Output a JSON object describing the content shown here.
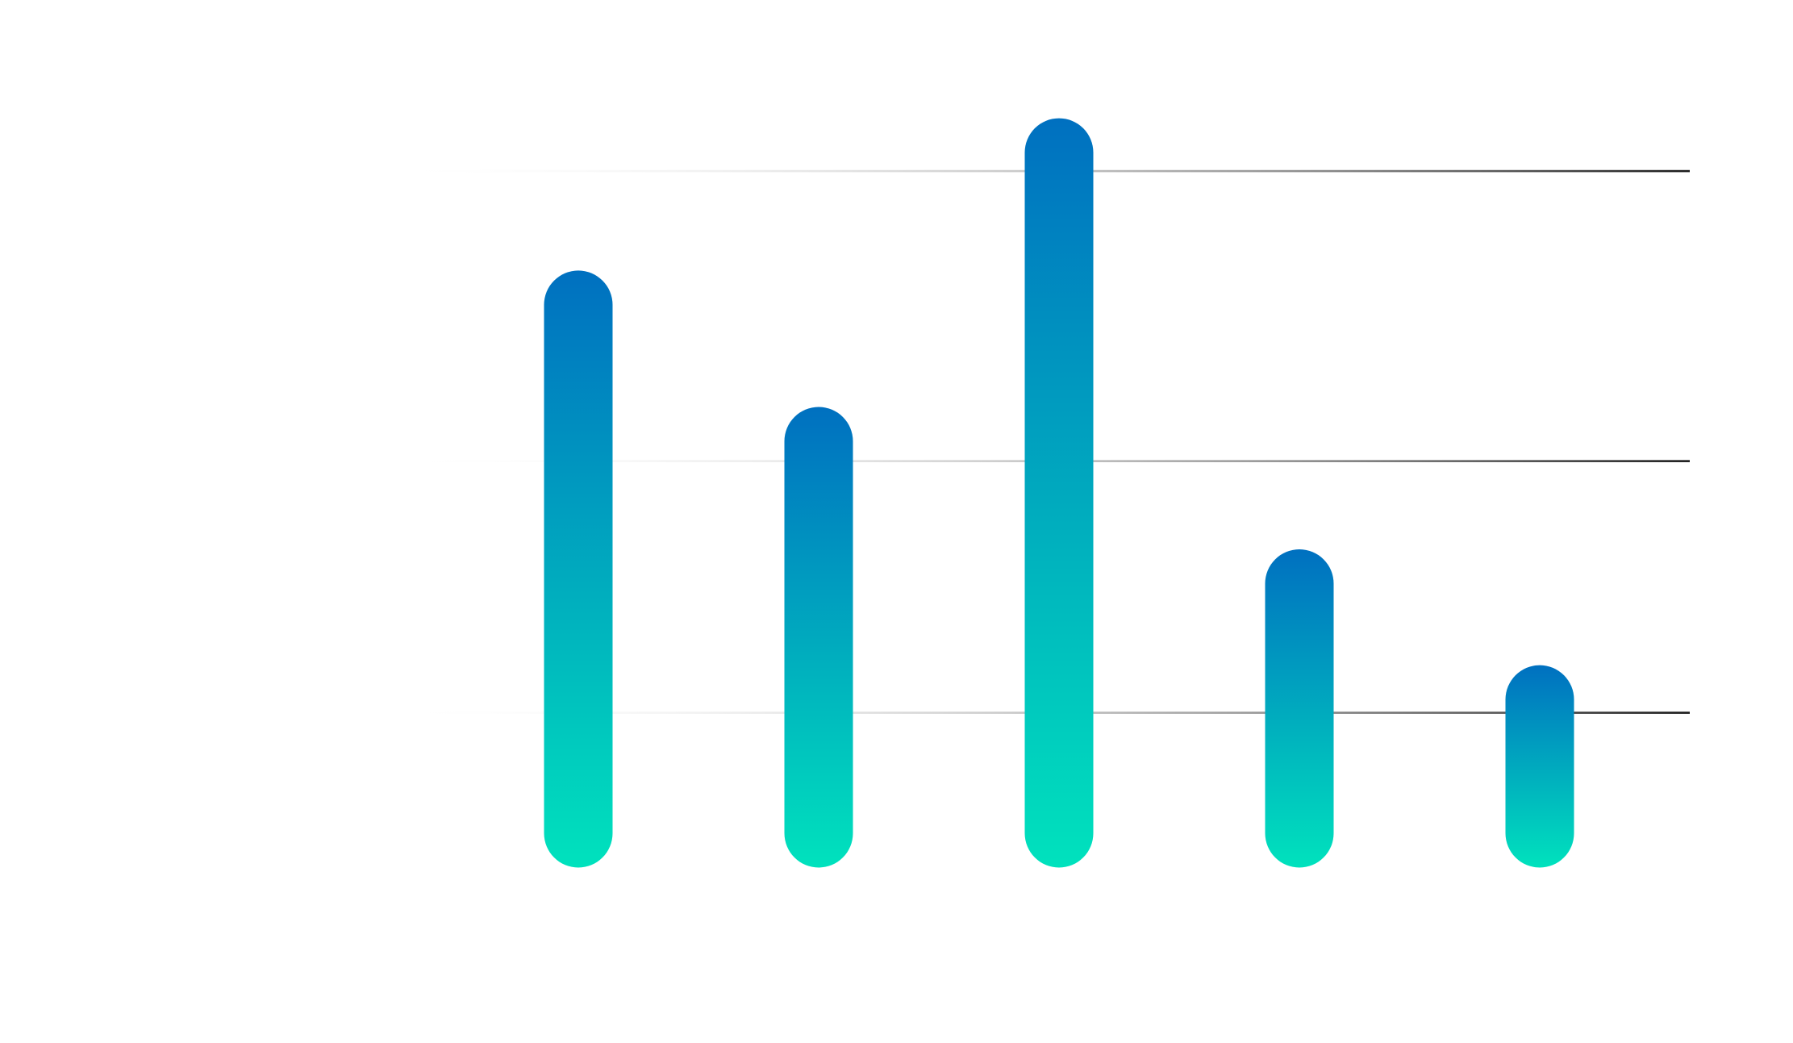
{
  "chart_data": {
    "type": "bar",
    "categories": [
      null,
      null,
      null,
      null,
      null
    ],
    "values": [
      79.8,
      59.2,
      102.8,
      37.7,
      20.2
    ],
    "gradient": [
      "#0070c0",
      "#00e2bd"
    ],
    "ylim": [
      0,
      110
    ],
    "yticks": [
      18.2,
      56.2,
      100
    ],
    "grid": true,
    "grid_color": "#1a1a1a"
  }
}
